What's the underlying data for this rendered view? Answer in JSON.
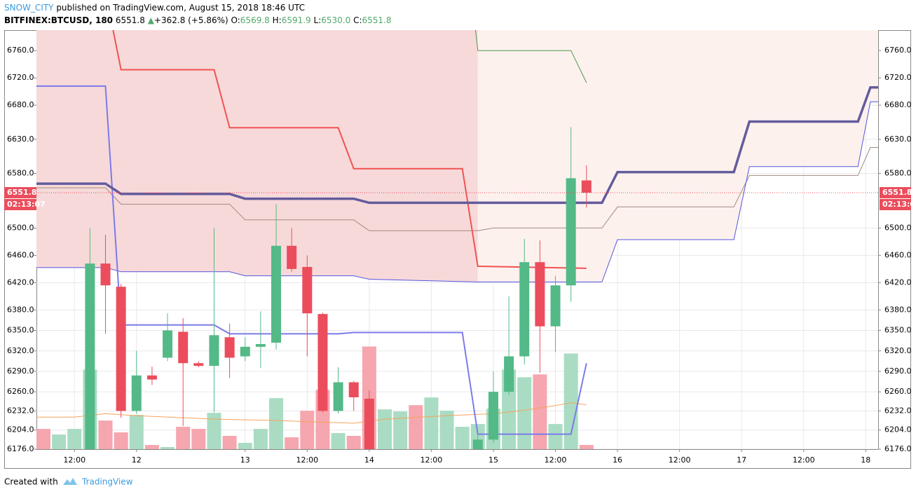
{
  "header": {
    "author": "SNOW_CITY",
    "published": "published on TradingView.com, August 15, 2018 18:46 UTC",
    "symbol": "BITFINEX:BTCUSD, 180",
    "last": "6551.8",
    "arrow": "▲",
    "change": "+362.8 (+5.86%)",
    "o_label": "O:",
    "o": "6569.8",
    "h_label": "H:",
    "h": "6591.9",
    "l_label": "L:",
    "l": "6530.0",
    "c_label": "C:",
    "c": "6551.8"
  },
  "footer": {
    "created": "Created with",
    "brand": "TradingView"
  },
  "chart_data": {
    "type": "candlestick",
    "xlim": [
      -0.45,
      53.8
    ],
    "xticks": [
      {
        "value": 2,
        "label": "12:00"
      },
      {
        "value": 6,
        "label": "12"
      },
      {
        "value": 13,
        "label": "13"
      },
      {
        "value": 17,
        "label": "12:00"
      },
      {
        "value": 21,
        "label": "14"
      },
      {
        "value": 25,
        "label": "12:00"
      },
      {
        "value": 29,
        "label": "15"
      },
      {
        "value": 33,
        "label": "12:00"
      },
      {
        "value": 37,
        "label": "16"
      },
      {
        "value": 41,
        "label": "12:00"
      },
      {
        "value": 45,
        "label": "17"
      },
      {
        "value": 49,
        "label": "12:00"
      },
      {
        "value": 53,
        "label": "18"
      }
    ],
    "ylim": [
      6176,
      6790
    ],
    "yticks": [
      {
        "value": 6176,
        "label": "6176.0"
      },
      {
        "value": 6204,
        "label": "6204.0"
      },
      {
        "value": 6232,
        "label": "6232.0"
      },
      {
        "value": 6260,
        "label": "6260.0"
      },
      {
        "value": 6290,
        "label": "6290.0"
      },
      {
        "value": 6320,
        "label": "6320.0"
      },
      {
        "value": 6350,
        "label": "6350.0"
      },
      {
        "value": 6380,
        "label": "6380.0"
      },
      {
        "value": 6420,
        "label": "6420.0"
      },
      {
        "value": 6460,
        "label": "6460.0"
      },
      {
        "value": 6500,
        "label": "6500.0"
      },
      {
        "value": 6580,
        "label": "6580.0"
      },
      {
        "value": 6630,
        "label": "6630.0"
      },
      {
        "value": 6680,
        "label": "6680.0"
      },
      {
        "value": 6720,
        "label": "6720.0"
      },
      {
        "value": 6760,
        "label": "6760.0"
      }
    ],
    "grid": true,
    "up_color": "#53b987",
    "down_color": "#eb4d5c",
    "candles": {
      "x": [
        3,
        4,
        5,
        6,
        7,
        8,
        9,
        10,
        11,
        12,
        13,
        14,
        15,
        16,
        17,
        18,
        19,
        20,
        21,
        28,
        29,
        30,
        31,
        32,
        33,
        34,
        35
      ],
      "open": [
        6150,
        6448,
        6414,
        6232,
        6284,
        6310,
        6348,
        6302,
        6298,
        6340,
        6312,
        6326,
        6332,
        6474,
        6443,
        6374,
        6232,
        6274,
        6250,
        6130,
        6190,
        6260,
        6312,
        6450,
        6356,
        6416,
        6569.8
      ],
      "high": [
        6500,
        6490,
        6418,
        6320,
        6297,
        6375,
        6368,
        6305,
        6500,
        6360,
        6340,
        6378,
        6535,
        6500,
        6460,
        6376,
        6296,
        6276,
        6262,
        6200,
        6290,
        6400,
        6484,
        6482,
        6430,
        6648,
        6591.9
      ],
      "low": [
        6140,
        6345,
        6222,
        6228,
        6270,
        6305,
        6210,
        6296,
        6230,
        6280,
        6305,
        6295,
        6322,
        6436,
        6312,
        6230,
        6228,
        6232,
        6120,
        6100,
        6185,
        6255,
        6300,
        6288,
        6318,
        6392,
        6530.0
      ],
      "close": [
        6448,
        6416,
        6232,
        6284,
        6278,
        6350,
        6302,
        6298,
        6343,
        6310,
        6326,
        6330,
        6474,
        6440,
        6375,
        6232,
        6274,
        6252,
        6130,
        6190,
        6260,
        6312,
        6450,
        6356,
        6416,
        6573,
        6551.8
      ]
    },
    "volume": {
      "lim": [
        0,
        600
      ],
      "values": [
        29,
        21,
        29,
        114,
        41,
        24,
        49,
        6,
        3,
        32,
        29,
        52,
        19,
        9,
        29,
        73,
        17,
        55,
        85,
        23,
        19,
        147,
        57,
        54,
        63,
        74,
        55,
        32,
        36,
        58,
        114,
        103,
        107,
        36,
        137,
        6
      ],
      "colors": [
        "#f5a6ae",
        "#a9dcc3",
        "#a9dcc3",
        "#a9dcc3",
        "#f5a6ae",
        "#f5a6ae",
        "#a9dcc3",
        "#f5a6ae",
        "#a9dcc3",
        "#f5a6ae",
        "#f5a6ae",
        "#a9dcc3",
        "#f5a6ae",
        "#a9dcc3",
        "#a9dcc3",
        "#a9dcc3",
        "#f5a6ae",
        "#f5a6ae",
        "#f5a6ae",
        "#a9dcc3",
        "#f5a6ae",
        "#f5a6ae",
        "#a9dcc3",
        "#a9dcc3",
        "#f5a6ae",
        "#a9dcc3",
        "#a9dcc3",
        "#a9dcc3",
        "#a9dcc3",
        "#a9dcc3",
        "#a9dcc3",
        "#a9dcc3",
        "#f5a6ae",
        "#a9dcc3",
        "#a9dcc3",
        "#f5a6ae"
      ]
    },
    "clouds": [
      {
        "color": "#f7d9da",
        "x": [
          -0.45,
          4,
          5,
          12,
          13,
          20,
          21,
          28
        ],
        "values": [
          6442,
          6442,
          6436,
          6436,
          6430,
          6430,
          6425,
          6421
        ]
      },
      {
        "color": "#fdf1ee",
        "x": [
          28,
          36,
          37,
          44.5,
          45.5,
          52.5,
          53.3,
          53.8
        ],
        "values": [
          6421,
          6421,
          6483,
          6483,
          6590,
          6590,
          6685,
          6685
        ]
      }
    ],
    "lines": [
      {
        "color": "#a08a80",
        "width": 1,
        "x": [
          -0.45,
          4,
          5,
          12,
          13,
          20,
          21,
          28,
          29,
          36,
          37,
          44.5,
          45.5,
          52.5,
          53.3,
          53.8
        ],
        "values": [
          6559,
          6559,
          6535,
          6535,
          6512,
          6512,
          6496,
          6496,
          6500,
          6500,
          6531,
          6531,
          6577,
          6577,
          6618,
          6618
        ]
      },
      {
        "color": "#5555dd",
        "width": 1,
        "x": [
          -0.45,
          4,
          5,
          12,
          13,
          20,
          21,
          28,
          36,
          37,
          44.5,
          45.5,
          52.5,
          53.3,
          53.8
        ],
        "values": [
          6442,
          6442,
          6436,
          6436,
          6430,
          6430,
          6425,
          6421,
          6421,
          6483,
          6483,
          6590,
          6590,
          6685,
          6685
        ]
      },
      {
        "color": "#f7a35c",
        "width": 1,
        "x": [
          -0.45,
          2,
          4,
          6,
          11,
          15,
          20,
          22,
          26,
          29,
          31,
          33,
          34,
          35
        ],
        "values": [
          6223,
          6223,
          6228,
          6225,
          6220,
          6218,
          6214,
          6220,
          6225,
          6228,
          6233,
          6240,
          6244,
          6241
        ]
      },
      {
        "color": "#4a9a4a",
        "width": 1,
        "x": [
          27.85,
          28,
          34,
          35
        ],
        "values": [
          6790,
          6760,
          6760,
          6713
        ]
      },
      {
        "color": "#f05350",
        "width": 2,
        "x": [
          4.4,
          5,
          11,
          12,
          19,
          20,
          27,
          28,
          35
        ],
        "values": [
          6800,
          6732,
          6732,
          6647,
          6647,
          6587,
          6587,
          6444,
          6441
        ]
      },
      {
        "color": "#7b7bea",
        "width": 2,
        "x": [
          -0.45,
          4,
          5,
          11,
          12,
          19,
          20,
          27,
          28,
          34,
          35
        ],
        "values": [
          6708,
          6708,
          6358,
          6358,
          6345,
          6345,
          6347,
          6347,
          6198,
          6198,
          6302
        ]
      },
      {
        "color": "#635c9c",
        "width": 3.5,
        "x": [
          -0.45,
          4,
          5,
          12,
          13,
          20,
          21,
          36,
          37,
          44.5,
          45.5,
          52.5,
          53.3,
          53.8
        ],
        "values": [
          6565,
          6565,
          6550,
          6550,
          6543,
          6543,
          6537,
          6537,
          6582,
          6582,
          6656,
          6656,
          6706,
          6706
        ]
      }
    ],
    "last_price": {
      "value": 6551.8,
      "label": "6551.8",
      "countdown": "02:13:07",
      "color": "#eb4d5c"
    }
  }
}
